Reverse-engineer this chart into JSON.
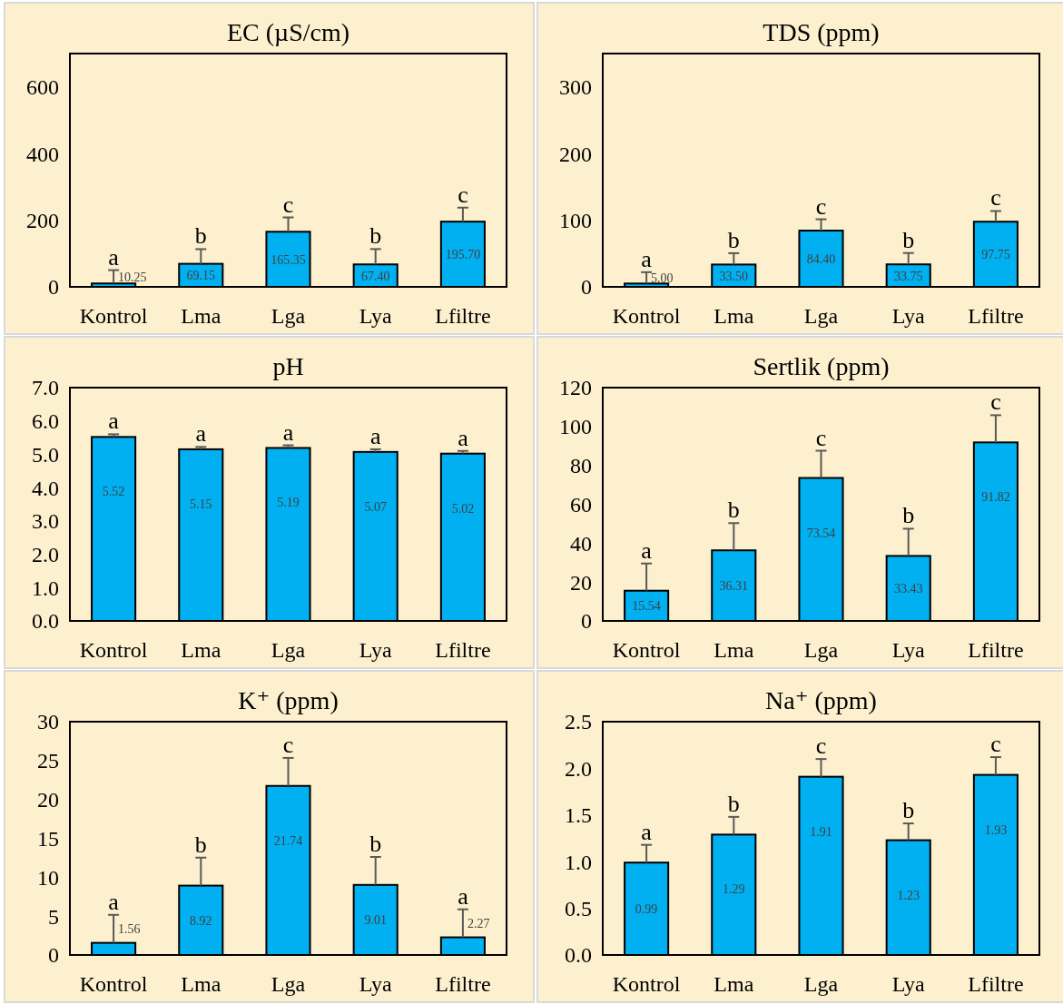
{
  "chart_data": [
    {
      "type": "bar",
      "title": "EC (µS/cm)",
      "categories": [
        "Kontrol",
        "Lma",
        "Lga",
        "Lya",
        "Lfiltre"
      ],
      "values": [
        10.25,
        69.15,
        165.35,
        67.4,
        195.7
      ],
      "value_labels": [
        "10.25",
        "69.15",
        "165.35",
        "67.40",
        "195.70"
      ],
      "errors": [
        40,
        44,
        43,
        46,
        42
      ],
      "color": "#00b0f0",
      "ylim": [
        0,
        700
      ],
      "yticks": [
        0,
        200,
        400,
        600
      ],
      "annotations": [
        {
          "text": "a",
          "x": "Kontrol",
          "y": 50.25
        },
        {
          "text": "b",
          "x": "Lma",
          "y": 113.15
        },
        {
          "text": "c",
          "x": "Lga",
          "y": 208.35
        },
        {
          "text": "b",
          "x": "Lya",
          "y": 113.4
        },
        {
          "text": "c",
          "x": "Lfiltre",
          "y": 237.7
        }
      ]
    },
    {
      "type": "bar",
      "title": "TDS (ppm)",
      "categories": [
        "Kontrol",
        "Lma",
        "Lga",
        "Lya",
        "Lfiltre"
      ],
      "values": [
        5,
        33.5,
        84.4,
        33.75,
        97.75
      ],
      "value_labels": [
        "5.00",
        "33.50",
        "84.40",
        "33.75",
        "97.75"
      ],
      "errors": [
        17,
        17,
        17,
        17,
        16
      ],
      "color": "#00b0f0",
      "ylim": [
        0,
        350
      ],
      "yticks": [
        0,
        100,
        200,
        300
      ],
      "annotations": [
        {
          "text": "a",
          "x": "Kontrol",
          "y": 22
        },
        {
          "text": "b",
          "x": "Lma",
          "y": 50.5
        },
        {
          "text": "c",
          "x": "Lga",
          "y": 101.4
        },
        {
          "text": "b",
          "x": "Lya",
          "y": 50.75
        },
        {
          "text": "c",
          "x": "Lfiltre",
          "y": 113.75
        }
      ]
    },
    {
      "type": "bar",
      "title": "pH",
      "categories": [
        "Kontrol",
        "Lma",
        "Lga",
        "Lya",
        "Lfiltre"
      ],
      "values": [
        5.52,
        5.15,
        5.19,
        5.07,
        5.02
      ],
      "value_labels": [
        "5.52",
        "5.15",
        "5.19",
        "5.07",
        "5.02"
      ],
      "errors": [
        0.08,
        0.07,
        0.08,
        0.08,
        0.08
      ],
      "color": "#00b0f0",
      "ylim": [
        0,
        7
      ],
      "yticks": [
        {
          "value": 0,
          "label": "0.0"
        },
        {
          "value": 1,
          "label": "1.0"
        },
        {
          "value": 2,
          "label": "2.0"
        },
        {
          "value": 3,
          "label": "3.0"
        },
        {
          "value": 4,
          "label": "4.0"
        },
        {
          "value": 5,
          "label": "5.0"
        },
        {
          "value": 6,
          "label": "6.0"
        },
        {
          "value": 7,
          "label": "7.0"
        }
      ],
      "annotations": [
        {
          "text": "a",
          "x": "Kontrol",
          "y": 5.6
        },
        {
          "text": "a",
          "x": "Lma",
          "y": 5.22
        },
        {
          "text": "a",
          "x": "Lga",
          "y": 5.27
        },
        {
          "text": "a",
          "x": "Lya",
          "y": 5.15
        },
        {
          "text": "a",
          "x": "Lfiltre",
          "y": 5.1
        }
      ]
    },
    {
      "type": "bar",
      "title": "Sertlik (ppm)",
      "categories": [
        "Kontrol",
        "Lma",
        "Lga",
        "Lya",
        "Lfiltre"
      ],
      "values": [
        15.54,
        36.31,
        73.54,
        33.43,
        91.82
      ],
      "value_labels": [
        "15.54",
        "36.31",
        "73.54",
        "33.43",
        "91.82"
      ],
      "errors": [
        14,
        14,
        14,
        14,
        14
      ],
      "color": "#00b0f0",
      "ylim": [
        0,
        120
      ],
      "yticks": [
        0,
        20,
        40,
        60,
        80,
        100,
        120
      ],
      "annotations": [
        {
          "text": "a",
          "x": "Kontrol",
          "y": 29.54
        },
        {
          "text": "b",
          "x": "Lma",
          "y": 50.31
        },
        {
          "text": "c",
          "x": "Lga",
          "y": 87.54
        },
        {
          "text": "b",
          "x": "Lya",
          "y": 47.43
        },
        {
          "text": "c",
          "x": "Lfiltre",
          "y": 105.82
        }
      ]
    },
    {
      "type": "bar",
      "title": "K⁺ (ppm)",
      "categories": [
        "Kontrol",
        "Lma",
        "Lga",
        "Lya",
        "Lfiltre"
      ],
      "values": [
        1.56,
        8.92,
        21.74,
        9.01,
        2.27
      ],
      "value_labels": [
        "1.56",
        "8.92",
        "21.74",
        "9.01",
        "2.27"
      ],
      "errors": [
        3.6,
        3.6,
        3.6,
        3.6,
        3.6
      ],
      "color": "#00b0f0",
      "ylim": [
        0,
        30
      ],
      "yticks": [
        0,
        5,
        10,
        15,
        20,
        25,
        30
      ],
      "annotations": [
        {
          "text": "a",
          "x": "Kontrol",
          "y": 5.16
        },
        {
          "text": "b",
          "x": "Lma",
          "y": 12.52
        },
        {
          "text": "c",
          "x": "Lga",
          "y": 25.34
        },
        {
          "text": "b",
          "x": "Lya",
          "y": 12.61
        },
        {
          "text": "a",
          "x": "Lfiltre",
          "y": 5.87
        }
      ]
    },
    {
      "type": "bar",
      "title": "Na⁺ (ppm)",
      "categories": [
        "Kontrol",
        "Lma",
        "Lga",
        "Lya",
        "Lfiltre"
      ],
      "values": [
        0.99,
        1.29,
        1.91,
        1.23,
        1.93
      ],
      "value_labels": [
        "0.99",
        "1.29",
        "1.91",
        "1.23",
        "1.93"
      ],
      "errors": [
        0.19,
        0.19,
        0.19,
        0.18,
        0.19
      ],
      "color": "#00b0f0",
      "ylim": [
        0,
        2.5
      ],
      "yticks": [
        {
          "value": 0,
          "label": "0.0"
        },
        {
          "value": 0.5,
          "label": "0.5"
        },
        {
          "value": 1,
          "label": "1.0"
        },
        {
          "value": 1.5,
          "label": "1.5"
        },
        {
          "value": 2,
          "label": "2.0"
        },
        {
          "value": 2.5,
          "label": "2.5"
        }
      ],
      "annotations": [
        {
          "text": "a",
          "x": "Kontrol",
          "y": 1.18
        },
        {
          "text": "b",
          "x": "Lma",
          "y": 1.48
        },
        {
          "text": "c",
          "x": "Lga",
          "y": 2.1
        },
        {
          "text": "b",
          "x": "Lya",
          "y": 1.41
        },
        {
          "text": "c",
          "x": "Lfiltre",
          "y": 2.12
        }
      ]
    }
  ]
}
